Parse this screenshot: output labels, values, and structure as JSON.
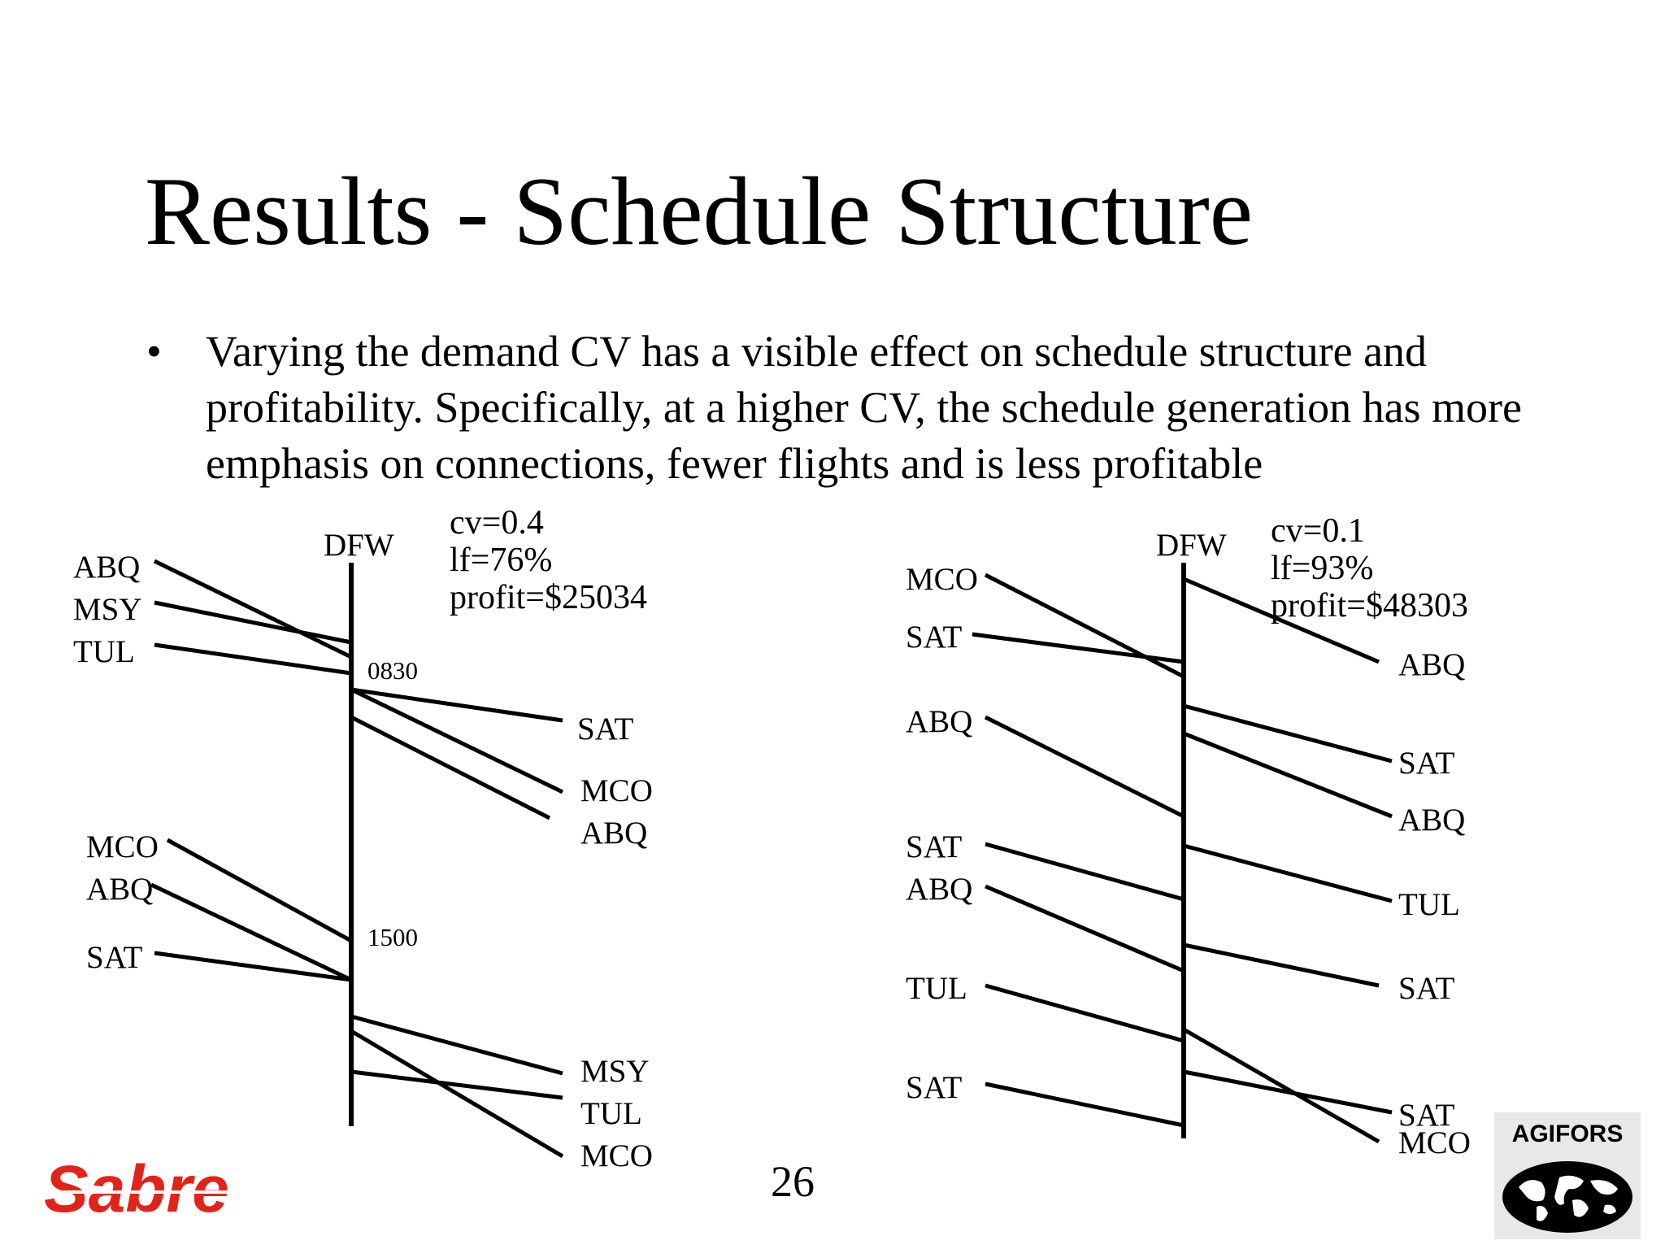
{
  "title": "Results - Schedule Structure",
  "bullet": {
    "marker": "•",
    "text": "Varying the demand CV has a visible effect on schedule structure and profitability. Specifically, at a higher CV, the schedule generation has more emphasis on connections, fewer flights and is less profitable"
  },
  "page_number": "26",
  "diagram_left": {
    "hub": "DFW",
    "stats": [
      "cv=0.4",
      "lf=76%",
      "profit=$25034"
    ],
    "times": [
      "0830",
      "1500"
    ],
    "inbound": [
      "ABQ",
      "MSY",
      "TUL",
      "MCO",
      "ABQ",
      "SAT"
    ],
    "outbound": [
      "SAT",
      "MCO",
      "ABQ",
      "MSY",
      "TUL",
      "MCO"
    ]
  },
  "diagram_right": {
    "hub": "DFW",
    "stats": [
      "cv=0.1",
      "lf=93%",
      "profit=$48303"
    ],
    "inbound": [
      "MCO",
      "SAT",
      "ABQ",
      "SAT",
      "ABQ",
      "TUL",
      "SAT"
    ],
    "outbound": [
      "ABQ",
      "SAT",
      "ABQ",
      "TUL",
      "SAT",
      "SAT",
      "MCO"
    ]
  },
  "logos": {
    "sabre": "Sabre",
    "agifors": "AGIFORS",
    "sabre_color": "#e2231a"
  }
}
